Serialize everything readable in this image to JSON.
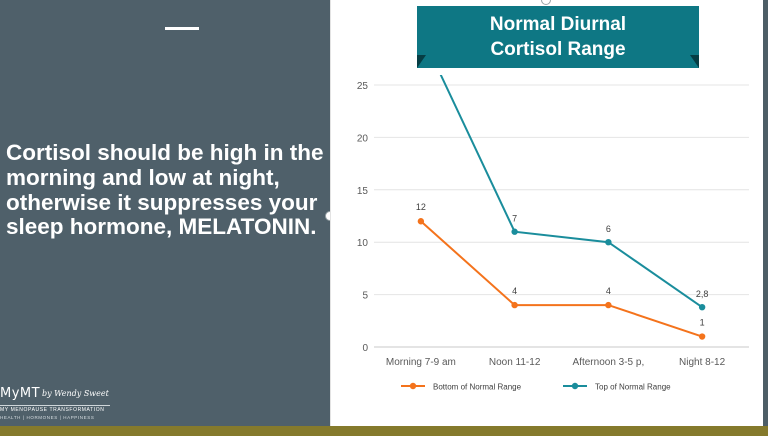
{
  "slide": {
    "headline": "Cortisol should be high in the morning and low at night, otherwise it suppresses your sleep hormone, MELATONIN.",
    "logo": {
      "main": "MyMT",
      "signature": "by Wendy Sweet",
      "tagline": "MY MENOPAUSE TRANSFORMATION",
      "subtagline": "HEALTH | HORMONES | HAPPINESS"
    }
  },
  "colors": {
    "bottom_series": "#f4731c",
    "top_series": "#1a8d9c",
    "title_banner": "#0e7784",
    "footer_bar": "#857a2c"
  },
  "chart_data": {
    "type": "line",
    "title": "Normal Diurnal Cortisol Range",
    "categories": [
      "Morning 7-9 am",
      "Noon 11-12",
      "Afternoon 3-5 p,",
      "Night 8-12"
    ],
    "y_ticks": [
      "0",
      "5",
      "10",
      "15",
      "20",
      "25"
    ],
    "ylim": [
      0,
      25
    ],
    "grid": true,
    "legend_position": "bottom",
    "series": [
      {
        "name": "Bottom of Normal Range",
        "values": [
          12,
          4,
          4,
          1
        ],
        "labels": [
          "12",
          "4",
          "4",
          "1"
        ]
      },
      {
        "name": "Top of Normal Range",
        "values": [
          30,
          11,
          10,
          3.8
        ],
        "labels": [
          "",
          "7",
          "6",
          "2,8"
        ]
      }
    ]
  }
}
